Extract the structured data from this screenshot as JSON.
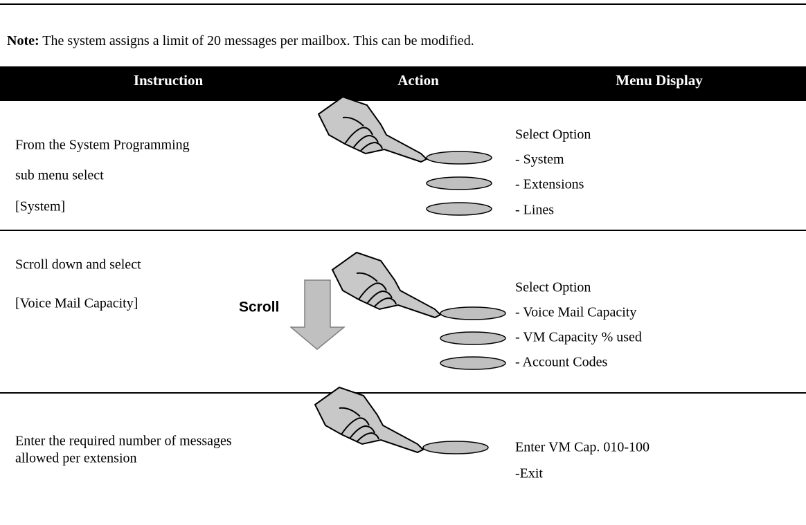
{
  "note": {
    "label": "Note:",
    "text": " The system assigns a limit of 20 messages per mailbox. This can be modified."
  },
  "table": {
    "headers": [
      "Instruction",
      "Action",
      "Menu Display"
    ],
    "rows": [
      {
        "instruction": [
          "From the System Programming",
          "sub menu select",
          " [System]"
        ],
        "menu": [
          "Select Option",
          "- System",
          "- Extensions",
          "- Lines"
        ]
      },
      {
        "instruction": [
          "Scroll down and select",
          "[Voice Mail Capacity]"
        ],
        "action": "Scroll",
        "menu": [
          "Select Option",
          "- Voice Mail Capacity",
          "- VM Capacity % used",
          "- Account Codes"
        ]
      },
      {
        "instruction": [
          "Enter the required number of messages",
          "allowed per extension"
        ],
        "menu": [
          "Enter VM Cap. 010-100",
          "-Exit"
        ]
      }
    ]
  }
}
